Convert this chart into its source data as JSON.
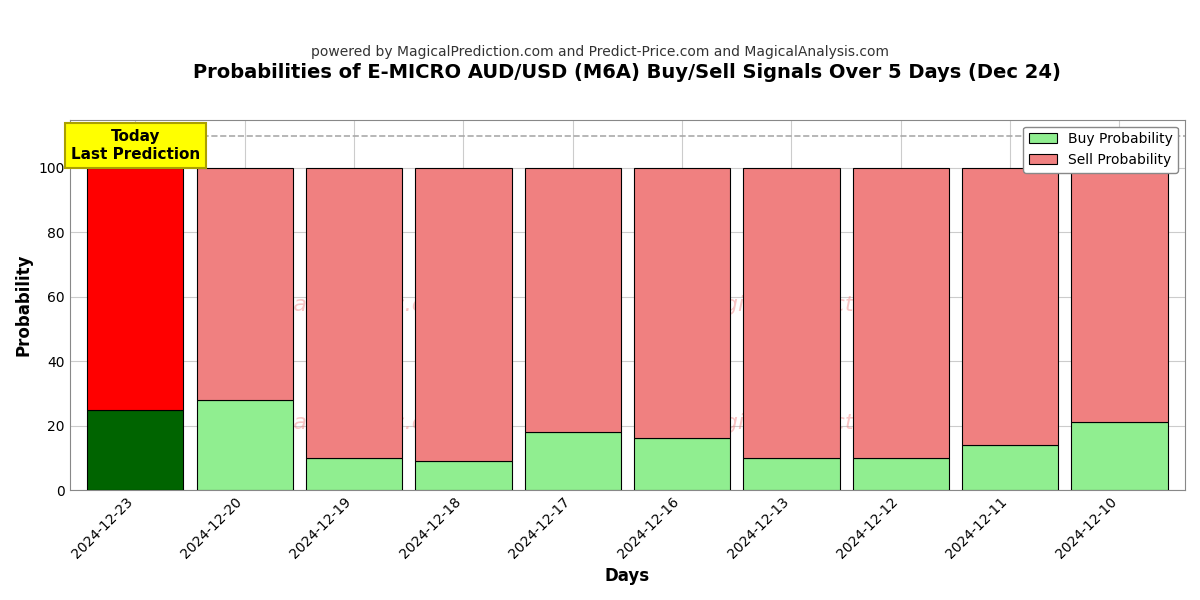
{
  "title": "Probabilities of E-MICRO AUD/USD (M6A) Buy/Sell Signals Over 5 Days (Dec 24)",
  "subtitle": "powered by MagicalPrediction.com and Predict-Price.com and MagicalAnalysis.com",
  "xlabel": "Days",
  "ylabel": "Probability",
  "categories": [
    "2024-12-23",
    "2024-12-20",
    "2024-12-19",
    "2024-12-18",
    "2024-12-17",
    "2024-12-16",
    "2024-12-13",
    "2024-12-12",
    "2024-12-11",
    "2024-12-10"
  ],
  "buy_values": [
    25,
    28,
    10,
    9,
    18,
    16,
    10,
    10,
    14,
    21
  ],
  "sell_values": [
    75,
    72,
    90,
    91,
    82,
    84,
    90,
    90,
    86,
    79
  ],
  "today_index": 0,
  "buy_color_today": "#006400",
  "sell_color_today": "#ff0000",
  "buy_color_normal": "#90ee90",
  "sell_color_normal": "#f08080",
  "bar_edge_color": "#000000",
  "today_box_color": "#ffff00",
  "today_box_text": "Today\nLast Prediction",
  "dashed_line_y": 110,
  "dashed_line_color": "#aaaaaa",
  "ylim": [
    0,
    115
  ],
  "yticks": [
    0,
    20,
    40,
    60,
    80,
    100
  ],
  "grid_color": "#cccccc",
  "background_color": "#ffffff",
  "watermark_text1": "calAnalysis.com",
  "watermark_text2": "MagicalPrediction.com",
  "legend_buy_label": "Buy Probability",
  "legend_sell_label": "Sell Probability"
}
